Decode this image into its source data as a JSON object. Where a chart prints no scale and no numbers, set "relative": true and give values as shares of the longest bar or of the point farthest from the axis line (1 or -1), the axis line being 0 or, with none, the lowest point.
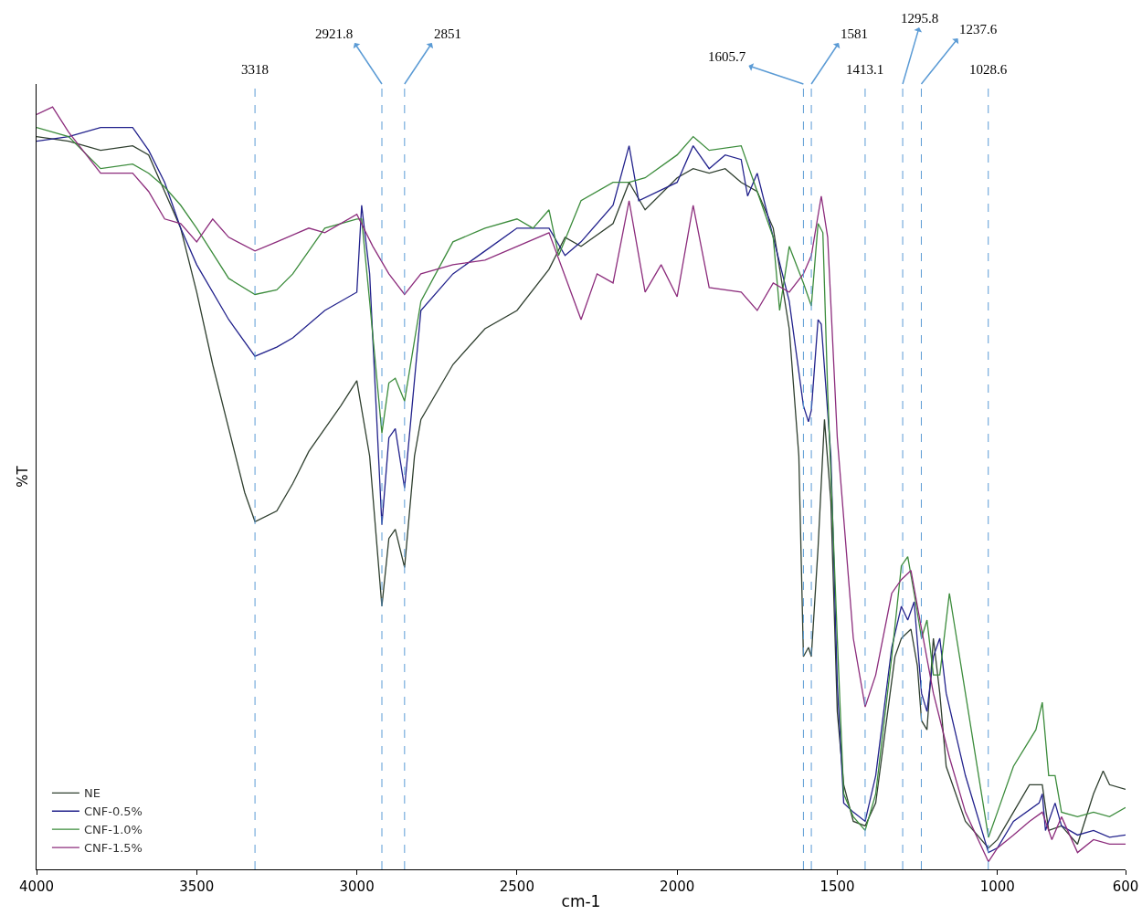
{
  "chart_data": {
    "type": "line",
    "relative": true,
    "xlabel": "cm-1",
    "ylabel": "%T",
    "xlim": [
      4000,
      600
    ],
    "xticks": [
      4000,
      3500,
      3000,
      2500,
      2000,
      1500,
      1000,
      600
    ],
    "grid": false,
    "legend": "bottom left",
    "marker": "none",
    "line_style": "solid",
    "series": [
      {
        "name": "NE",
        "color": "#2f3f2f",
        "x": [
          4000,
          3900,
          3800,
          3700,
          3650,
          3600,
          3550,
          3500,
          3450,
          3400,
          3350,
          3318,
          3250,
          3200,
          3150,
          3100,
          3050,
          3000,
          2960,
          2921.8,
          2900,
          2880,
          2851,
          2820,
          2800,
          2700,
          2600,
          2500,
          2400,
          2350,
          2300,
          2200,
          2150,
          2100,
          2000,
          1950,
          1900,
          1850,
          1800,
          1750,
          1700,
          1650,
          1620,
          1605.7,
          1590,
          1581,
          1560,
          1540,
          1520,
          1500,
          1480,
          1450,
          1413,
          1380,
          1350,
          1320,
          1300,
          1270,
          1250,
          1237,
          1220,
          1200,
          1180,
          1160,
          1100,
          1028,
          1000,
          950,
          900,
          860,
          840,
          800,
          750,
          700,
          670,
          650,
          600
        ],
        "values": [
          0.961,
          0.955,
          0.943,
          0.949,
          0.937,
          0.889,
          0.841,
          0.757,
          0.662,
          0.578,
          0.494,
          0.456,
          0.47,
          0.506,
          0.548,
          0.578,
          0.608,
          0.641,
          0.542,
          0.345,
          0.434,
          0.446,
          0.396,
          0.542,
          0.59,
          0.662,
          0.709,
          0.733,
          0.787,
          0.829,
          0.817,
          0.847,
          0.901,
          0.865,
          0.907,
          0.919,
          0.913,
          0.919,
          0.901,
          0.889,
          0.841,
          0.709,
          0.542,
          0.279,
          0.291,
          0.279,
          0.422,
          0.59,
          0.482,
          0.207,
          0.111,
          0.063,
          0.057,
          0.087,
          0.183,
          0.279,
          0.303,
          0.315,
          0.267,
          0.195,
          0.183,
          0.303,
          0.231,
          0.135,
          0.063,
          0.028,
          0.039,
          0.075,
          0.111,
          0.111,
          0.051,
          0.057,
          0.033,
          0.099,
          0.129,
          0.111,
          0.105
        ]
      },
      {
        "name": "CNF-0.5%",
        "color": "#22228c",
        "x": [
          4000,
          3900,
          3800,
          3700,
          3650,
          3600,
          3550,
          3500,
          3400,
          3318,
          3250,
          3200,
          3100,
          3000,
          2985,
          2960,
          2921.8,
          2900,
          2880,
          2851,
          2800,
          2700,
          2600,
          2500,
          2400,
          2350,
          2300,
          2200,
          2150,
          2120,
          2000,
          1950,
          1900,
          1850,
          1800,
          1780,
          1750,
          1700,
          1650,
          1605.7,
          1590,
          1581,
          1560,
          1550,
          1520,
          1500,
          1480,
          1450,
          1413,
          1380,
          1330,
          1300,
          1280,
          1260,
          1237,
          1220,
          1200,
          1180,
          1160,
          1100,
          1028,
          1000,
          950,
          870,
          860,
          850,
          820,
          800,
          750,
          700,
          650,
          600
        ],
        "values": [
          0.955,
          0.961,
          0.973,
          0.973,
          0.943,
          0.901,
          0.841,
          0.793,
          0.721,
          0.673,
          0.685,
          0.697,
          0.733,
          0.757,
          0.871,
          0.781,
          0.452,
          0.566,
          0.578,
          0.5,
          0.733,
          0.781,
          0.811,
          0.841,
          0.841,
          0.805,
          0.823,
          0.871,
          0.949,
          0.877,
          0.901,
          0.949,
          0.919,
          0.937,
          0.931,
          0.883,
          0.913,
          0.829,
          0.745,
          0.608,
          0.587,
          0.602,
          0.721,
          0.715,
          0.542,
          0.243,
          0.087,
          0.075,
          0.063,
          0.123,
          0.291,
          0.345,
          0.327,
          0.351,
          0.231,
          0.207,
          0.279,
          0.303,
          0.231,
          0.123,
          0.022,
          0.028,
          0.063,
          0.087,
          0.099,
          0.051,
          0.087,
          0.057,
          0.045,
          0.051,
          0.042,
          0.045
        ]
      },
      {
        "name": "CNF-1.0%",
        "color": "#3c8c3c",
        "x": [
          4000,
          3900,
          3800,
          3700,
          3650,
          3600,
          3550,
          3500,
          3400,
          3318,
          3250,
          3200,
          3100,
          3000,
          2985,
          2960,
          2921.8,
          2900,
          2880,
          2851,
          2800,
          2700,
          2600,
          2500,
          2450,
          2400,
          2370,
          2300,
          2200,
          2150,
          2100,
          2000,
          1950,
          1900,
          1800,
          1750,
          1700,
          1680,
          1650,
          1605.7,
          1581,
          1560,
          1545,
          1530,
          1500,
          1480,
          1450,
          1413,
          1380,
          1330,
          1300,
          1280,
          1260,
          1237,
          1220,
          1200,
          1180,
          1150,
          1100,
          1028,
          1000,
          950,
          880,
          860,
          840,
          820,
          800,
          750,
          700,
          650,
          600
        ],
        "values": [
          0.973,
          0.961,
          0.919,
          0.925,
          0.913,
          0.895,
          0.871,
          0.841,
          0.775,
          0.754,
          0.76,
          0.781,
          0.841,
          0.853,
          0.853,
          0.745,
          0.572,
          0.638,
          0.644,
          0.614,
          0.745,
          0.823,
          0.841,
          0.853,
          0.841,
          0.865,
          0.805,
          0.877,
          0.901,
          0.901,
          0.907,
          0.937,
          0.961,
          0.943,
          0.949,
          0.889,
          0.829,
          0.733,
          0.817,
          0.769,
          0.739,
          0.847,
          0.835,
          0.626,
          0.303,
          0.099,
          0.069,
          0.051,
          0.099,
          0.279,
          0.398,
          0.41,
          0.362,
          0.303,
          0.327,
          0.255,
          0.255,
          0.362,
          0.231,
          0.042,
          0.075,
          0.135,
          0.183,
          0.219,
          0.123,
          0.123,
          0.075,
          0.069,
          0.075,
          0.069,
          0.081
        ]
      },
      {
        "name": "CNF-1.5%",
        "color": "#8c2c7c",
        "x": [
          4000,
          3950,
          3900,
          3800,
          3700,
          3650,
          3600,
          3550,
          3500,
          3450,
          3400,
          3318,
          3250,
          3150,
          3100,
          3000,
          2950,
          2900,
          2851,
          2800,
          2700,
          2600,
          2500,
          2400,
          2300,
          2250,
          2200,
          2150,
          2100,
          2050,
          2000,
          1950,
          1900,
          1800,
          1750,
          1700,
          1650,
          1605.7,
          1581,
          1550,
          1530,
          1500,
          1450,
          1413,
          1380,
          1330,
          1300,
          1270,
          1237,
          1200,
          1150,
          1100,
          1028,
          1000,
          950,
          900,
          860,
          830,
          800,
          750,
          700,
          650,
          600
        ],
        "values": [
          0.99,
          1,
          0.967,
          0.913,
          0.913,
          0.889,
          0.853,
          0.847,
          0.823,
          0.853,
          0.829,
          0.811,
          0.823,
          0.841,
          0.835,
          0.859,
          0.817,
          0.781,
          0.754,
          0.781,
          0.793,
          0.799,
          0.817,
          0.835,
          0.721,
          0.781,
          0.769,
          0.877,
          0.757,
          0.793,
          0.751,
          0.871,
          0.763,
          0.757,
          0.733,
          0.769,
          0.757,
          0.781,
          0.805,
          0.883,
          0.829,
          0.566,
          0.303,
          0.213,
          0.255,
          0.362,
          0.38,
          0.392,
          0.315,
          0.231,
          0.147,
          0.075,
          0.01,
          0.028,
          0.045,
          0.063,
          0.075,
          0.039,
          0.069,
          0.022,
          0.039,
          0.033,
          0.033
        ]
      }
    ],
    "ref_lines": [
      {
        "axis": "x",
        "value": 3318,
        "label": "3318",
        "color": "#5b9bd5",
        "line_style": "dashed"
      },
      {
        "axis": "x",
        "value": 2921.8,
        "label": "2921.8",
        "color": "#5b9bd5",
        "line_style": "dashed"
      },
      {
        "axis": "x",
        "value": 2851,
        "label": "2851",
        "color": "#5b9bd5",
        "line_style": "dashed"
      },
      {
        "axis": "x",
        "value": 1605.7,
        "label": "1605.7",
        "color": "#5b9bd5",
        "line_style": "dashed"
      },
      {
        "axis": "x",
        "value": 1581,
        "label": "1581",
        "color": "#5b9bd5",
        "line_style": "dashed"
      },
      {
        "axis": "x",
        "value": 1413.1,
        "label": "1413.1",
        "color": "#5b9bd5",
        "line_style": "dashed"
      },
      {
        "axis": "x",
        "value": 1295.8,
        "label": "1295.8",
        "color": "#5b9bd5",
        "line_style": "dashed"
      },
      {
        "axis": "x",
        "value": 1237.6,
        "label": "1237.6",
        "color": "#5b9bd5",
        "line_style": "dashed"
      },
      {
        "axis": "x",
        "value": 1028.6,
        "label": "1028.6",
        "color": "#5b9bd5",
        "line_style": "dashed"
      }
    ]
  }
}
